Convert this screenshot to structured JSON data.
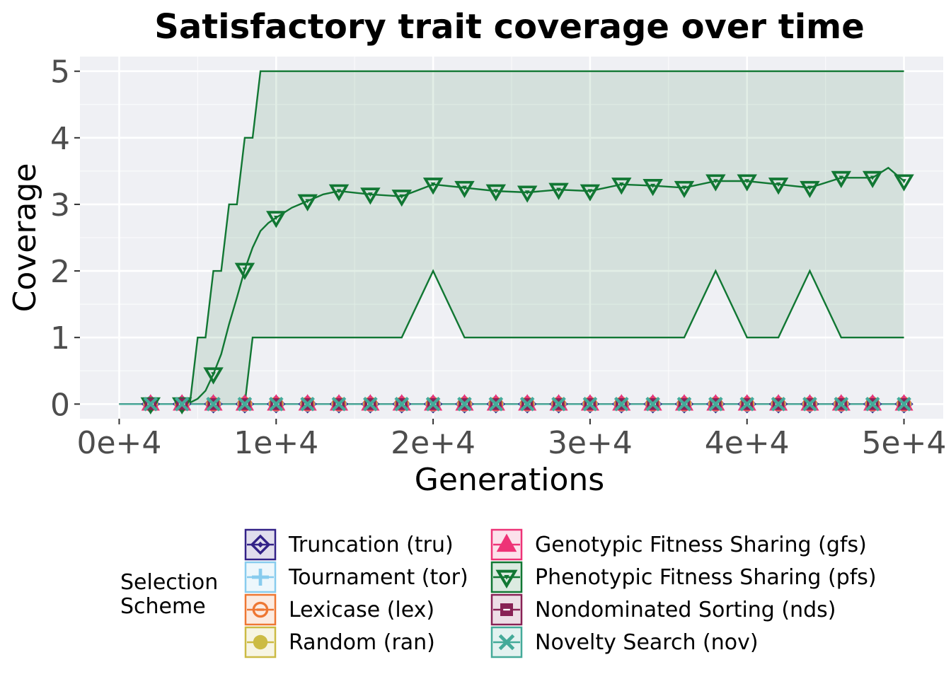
{
  "chart_data": {
    "type": "line",
    "title": "Satisfactory trait coverage over time",
    "xlabel": "Generations",
    "ylabel": "Coverage",
    "xlim": [
      -2500,
      52500
    ],
    "ylim": [
      -0.22,
      5.22
    ],
    "x_ticks": [
      0,
      10000,
      20000,
      30000,
      40000,
      50000
    ],
    "x_tick_labels": [
      "0e+4",
      "1e+4",
      "2e+4",
      "3e+4",
      "4e+4",
      "5e+4"
    ],
    "y_ticks": [
      0,
      1,
      2,
      3,
      4,
      5
    ],
    "y_tick_labels": [
      "0",
      "1",
      "2",
      "3",
      "4",
      "5"
    ],
    "grid": true,
    "legend_position": "bottom",
    "legend_title": [
      "Selection",
      "Scheme"
    ],
    "x": [
      0,
      2000,
      4000,
      4500,
      5000,
      5500,
      6000,
      6500,
      7000,
      7500,
      8000,
      8500,
      9000,
      9500,
      10000,
      11000,
      12000,
      13000,
      14000,
      16000,
      18000,
      20000,
      22000,
      24000,
      26000,
      28000,
      30000,
      32000,
      34000,
      36000,
      38000,
      40000,
      42000,
      44000,
      46000,
      48000,
      49000,
      50000
    ],
    "series": [
      {
        "name": "Truncation (tru)",
        "color": "#332288",
        "marker": "diamond",
        "values": [
          0,
          0,
          0,
          0,
          0,
          0,
          0,
          0,
          0,
          0,
          0,
          0,
          0,
          0,
          0,
          0,
          0,
          0,
          0,
          0,
          0,
          0,
          0,
          0,
          0,
          0,
          0,
          0,
          0,
          0,
          0,
          0,
          0,
          0,
          0,
          0,
          0,
          0
        ]
      },
      {
        "name": "Tournament (tor)",
        "color": "#88ccee",
        "marker": "plus",
        "values": [
          0,
          0,
          0,
          0,
          0,
          0,
          0,
          0,
          0,
          0,
          0,
          0,
          0,
          0,
          0,
          0,
          0,
          0,
          0,
          0,
          0,
          0,
          0,
          0,
          0,
          0,
          0,
          0,
          0,
          0,
          0,
          0,
          0,
          0,
          0,
          0,
          0,
          0
        ]
      },
      {
        "name": "Lexicase (lex)",
        "color": "#ee7733",
        "marker": "circle-minus",
        "values": [
          0,
          0,
          0,
          0,
          0,
          0,
          0,
          0,
          0,
          0,
          0,
          0,
          0,
          0,
          0,
          0,
          0,
          0,
          0,
          0,
          0,
          0,
          0,
          0,
          0,
          0,
          0,
          0,
          0,
          0,
          0,
          0,
          0,
          0,
          0,
          0,
          0,
          0
        ]
      },
      {
        "name": "Random (ran)",
        "color": "#ccbb44",
        "marker": "circle",
        "values": [
          0,
          0,
          0,
          0,
          0,
          0,
          0,
          0,
          0,
          0,
          0,
          0,
          0,
          0,
          0,
          0,
          0,
          0,
          0,
          0,
          0,
          0,
          0,
          0,
          0,
          0,
          0,
          0,
          0,
          0,
          0,
          0,
          0,
          0,
          0,
          0,
          0,
          0
        ]
      },
      {
        "name": "Genotypic Fitness Sharing (gfs)",
        "color": "#ee3377",
        "marker": "triangle-up",
        "values": [
          0,
          0,
          0,
          0,
          0,
          0,
          0,
          0,
          0,
          0,
          0,
          0,
          0,
          0,
          0,
          0,
          0,
          0,
          0,
          0,
          0,
          0,
          0,
          0,
          0,
          0,
          0,
          0,
          0,
          0,
          0,
          0,
          0,
          0,
          0,
          0,
          0,
          0
        ]
      },
      {
        "name": "Phenotypic Fitness Sharing (pfs)",
        "color": "#117733",
        "marker": "triangle-down",
        "values": [
          0,
          0,
          0,
          0.02,
          0.08,
          0.2,
          0.45,
          0.75,
          1.2,
          1.6,
          2.02,
          2.35,
          2.6,
          2.72,
          2.8,
          2.95,
          3.05,
          3.15,
          3.2,
          3.15,
          3.12,
          3.3,
          3.25,
          3.2,
          3.18,
          3.22,
          3.2,
          3.3,
          3.28,
          3.25,
          3.35,
          3.35,
          3.3,
          3.25,
          3.4,
          3.4,
          3.55,
          3.35
        ],
        "upper": [
          0,
          0,
          0,
          0,
          1,
          1,
          2,
          2,
          3,
          3,
          4,
          4,
          5,
          5,
          5,
          5,
          5,
          5,
          5,
          5,
          5,
          5,
          5,
          5,
          5,
          5,
          5,
          5,
          5,
          5,
          5,
          5,
          5,
          5,
          5,
          5,
          5,
          5
        ],
        "lower": [
          0,
          0,
          0,
          0,
          0,
          0,
          0,
          0,
          0,
          0,
          0,
          1,
          1,
          1,
          1,
          1,
          1,
          1,
          1,
          1,
          1,
          2,
          1,
          1,
          1,
          1,
          1,
          1,
          1,
          1,
          2,
          1,
          1,
          2,
          1,
          1,
          1,
          1
        ]
      },
      {
        "name": "Nondominated Sorting (nds)",
        "color": "#882255",
        "marker": "square-minus",
        "values": [
          0,
          0,
          0,
          0,
          0,
          0,
          0,
          0,
          0,
          0,
          0,
          0,
          0,
          0,
          0,
          0,
          0,
          0,
          0,
          0,
          0,
          0,
          0,
          0,
          0,
          0,
          0,
          0,
          0,
          0,
          0,
          0,
          0,
          0,
          0,
          0,
          0,
          0
        ]
      },
      {
        "name": "Novelty Search (nov)",
        "color": "#44aa99",
        "marker": "x",
        "values": [
          0,
          0,
          0,
          0,
          0,
          0,
          0,
          0,
          0,
          0,
          0,
          0,
          0,
          0,
          0,
          0,
          0,
          0,
          0,
          0,
          0,
          0,
          0,
          0,
          0,
          0,
          0,
          0,
          0,
          0,
          0,
          0,
          0,
          0,
          0,
          0,
          0,
          0
        ]
      }
    ]
  }
}
